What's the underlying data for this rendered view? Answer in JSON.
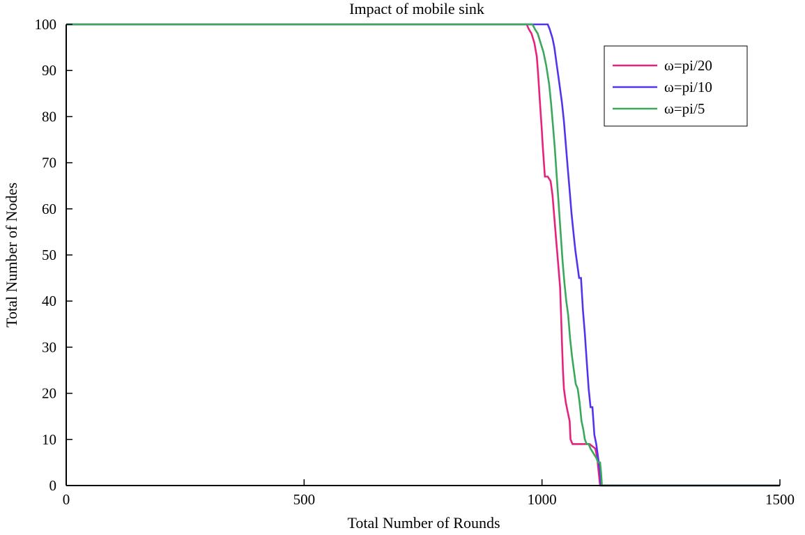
{
  "chart_data": {
    "type": "line",
    "title": "Impact of mobile sink",
    "xlabel": "Total Number of Rounds",
    "ylabel": "Total Number of Nodes",
    "xlim": [
      0,
      1500
    ],
    "ylim": [
      0,
      100
    ],
    "xticks": [
      "0",
      "500",
      "1000",
      "1500"
    ],
    "yticks": [
      "0",
      "10",
      "20",
      "30",
      "40",
      "50",
      "60",
      "70",
      "80",
      "90",
      "100"
    ],
    "legend_position": "top-right",
    "series": [
      {
        "name": "ω=pi/20",
        "color": "#e6227c",
        "points": [
          [
            0,
            100
          ],
          [
            968,
            100
          ],
          [
            972,
            99
          ],
          [
            978,
            98
          ],
          [
            984,
            96
          ],
          [
            989,
            93
          ],
          [
            992,
            89
          ],
          [
            995,
            84
          ],
          [
            999,
            78
          ],
          [
            1002,
            73
          ],
          [
            1006,
            67
          ],
          [
            1012,
            67
          ],
          [
            1018,
            66
          ],
          [
            1022,
            63
          ],
          [
            1026,
            58
          ],
          [
            1030,
            53
          ],
          [
            1034,
            48
          ],
          [
            1038,
            43
          ],
          [
            1040,
            37
          ],
          [
            1042,
            31
          ],
          [
            1044,
            25
          ],
          [
            1046,
            21
          ],
          [
            1050,
            18
          ],
          [
            1054,
            16
          ],
          [
            1058,
            14
          ],
          [
            1060,
            10
          ],
          [
            1064,
            9
          ],
          [
            1070,
            9
          ],
          [
            1080,
            9
          ],
          [
            1090,
            9
          ],
          [
            1100,
            9
          ],
          [
            1112,
            8
          ],
          [
            1116,
            6
          ],
          [
            1118,
            4
          ],
          [
            1120,
            2
          ],
          [
            1122,
            0
          ],
          [
            1500,
            0
          ]
        ]
      },
      {
        "name": "ω=pi/10",
        "color": "#5533ee",
        "points": [
          [
            0,
            100
          ],
          [
            1012,
            100
          ],
          [
            1016,
            99
          ],
          [
            1022,
            97
          ],
          [
            1026,
            95
          ],
          [
            1030,
            92
          ],
          [
            1034,
            89
          ],
          [
            1038,
            86
          ],
          [
            1042,
            83
          ],
          [
            1046,
            79
          ],
          [
            1050,
            74
          ],
          [
            1054,
            69
          ],
          [
            1058,
            64
          ],
          [
            1062,
            59
          ],
          [
            1066,
            55
          ],
          [
            1070,
            51
          ],
          [
            1074,
            48
          ],
          [
            1078,
            45
          ],
          [
            1082,
            45
          ],
          [
            1086,
            38
          ],
          [
            1090,
            33
          ],
          [
            1094,
            27
          ],
          [
            1098,
            21
          ],
          [
            1102,
            17
          ],
          [
            1106,
            17
          ],
          [
            1110,
            11
          ],
          [
            1114,
            9
          ],
          [
            1118,
            6
          ],
          [
            1122,
            3
          ],
          [
            1124,
            0
          ],
          [
            1500,
            0
          ]
        ]
      },
      {
        "name": "ω=pi/5",
        "color": "#3aa85a",
        "points": [
          [
            0,
            100
          ],
          [
            980,
            100
          ],
          [
            985,
            99
          ],
          [
            991,
            98
          ],
          [
            997,
            96
          ],
          [
            1003,
            94
          ],
          [
            1009,
            91
          ],
          [
            1015,
            87
          ],
          [
            1019,
            83
          ],
          [
            1023,
            78
          ],
          [
            1027,
            73
          ],
          [
            1031,
            67
          ],
          [
            1035,
            61
          ],
          [
            1039,
            55
          ],
          [
            1043,
            49
          ],
          [
            1047,
            44
          ],
          [
            1051,
            40
          ],
          [
            1055,
            37
          ],
          [
            1059,
            32
          ],
          [
            1063,
            28
          ],
          [
            1067,
            25
          ],
          [
            1071,
            22
          ],
          [
            1075,
            21
          ],
          [
            1079,
            18
          ],
          [
            1083,
            14
          ],
          [
            1087,
            12
          ],
          [
            1090,
            10
          ],
          [
            1094,
            9
          ],
          [
            1098,
            9
          ],
          [
            1102,
            8
          ],
          [
            1108,
            7
          ],
          [
            1114,
            6
          ],
          [
            1118,
            5
          ],
          [
            1122,
            5
          ],
          [
            1124,
            3
          ],
          [
            1126,
            0
          ],
          [
            1500,
            0
          ]
        ]
      }
    ]
  }
}
